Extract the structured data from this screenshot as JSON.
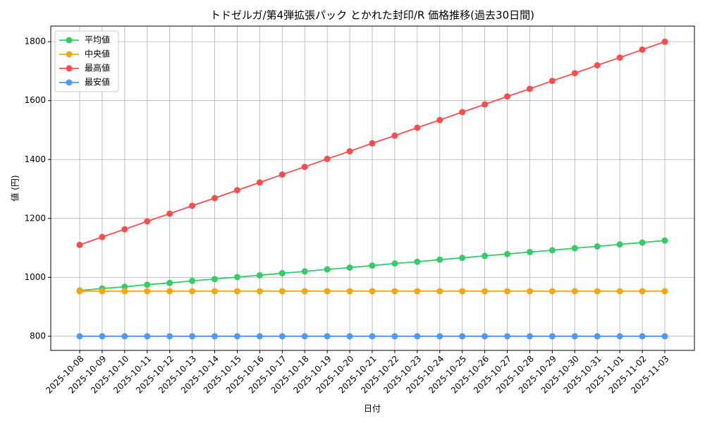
{
  "chart_data": {
    "type": "line",
    "title": "トドゼルガ/第4弾拡張パック とかれた封印/R 価格推移(過去30日間)",
    "x_label": "日付",
    "y_label": "値 (円)",
    "categories": [
      "2025-10-08",
      "2025-10-09",
      "2025-10-10",
      "2025-10-11",
      "2025-10-12",
      "2025-10-13",
      "2025-10-14",
      "2025-10-15",
      "2025-10-16",
      "2025-10-17",
      "2025-10-18",
      "2025-10-19",
      "2025-10-20",
      "2025-10-21",
      "2025-10-22",
      "2025-10-23",
      "2025-10-24",
      "2025-10-25",
      "2025-10-26",
      "2025-10-27",
      "2025-10-28",
      "2025-10-29",
      "2025-10-30",
      "2025-10-31",
      "2025-11-01",
      "2025-11-02",
      "2025-11-03"
    ],
    "series": [
      {
        "name": "平均値",
        "color": "#33cc66",
        "values": [
          955,
          962,
          968,
          975,
          981,
          988,
          994,
          1001,
          1007,
          1014,
          1020,
          1027,
          1033,
          1040,
          1047,
          1053,
          1060,
          1066,
          1073,
          1079,
          1086,
          1092,
          1099,
          1105,
          1112,
          1118,
          1125
        ]
      },
      {
        "name": "中央値",
        "color": "#ffa500",
        "values": [
          953,
          953,
          953,
          953,
          953,
          953,
          953,
          953,
          953,
          953,
          953,
          953,
          953,
          953,
          953,
          953,
          953,
          953,
          953,
          953,
          953,
          953,
          953,
          953,
          953,
          953,
          953
        ]
      },
      {
        "name": "最高値",
        "color": "#ff4c4c",
        "values": [
          1110,
          1137,
          1163,
          1190,
          1216,
          1243,
          1269,
          1296,
          1322,
          1349,
          1375,
          1402,
          1428,
          1455,
          1481,
          1508,
          1534,
          1561,
          1587,
          1614,
          1640,
          1667,
          1693,
          1720,
          1746,
          1773,
          1800
        ]
      },
      {
        "name": "最安値",
        "color": "#4c9bff",
        "values": [
          800,
          800,
          800,
          800,
          800,
          800,
          800,
          800,
          800,
          800,
          800,
          800,
          800,
          800,
          800,
          800,
          800,
          800,
          800,
          800,
          800,
          800,
          800,
          800,
          800,
          800,
          800
        ]
      }
    ],
    "ylim": [
      752,
      1853
    ],
    "yticks": [
      800,
      1000,
      1200,
      1400,
      1600,
      1800
    ],
    "grid": true,
    "legend": "upper-left"
  }
}
